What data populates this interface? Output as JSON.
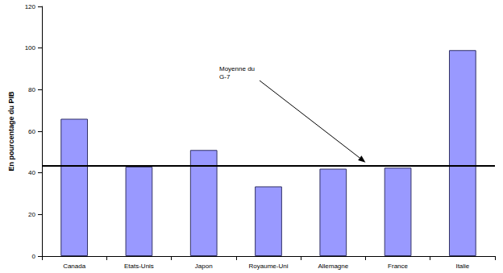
{
  "chart_data": {
    "type": "bar",
    "y_label": "En pourcentage du PIB",
    "categories": [
      "Canada",
      "Etats-Unis",
      "Japon",
      "Royaume-Uni",
      "Allemagne",
      "France",
      "Italie"
    ],
    "values": [
      66,
      43,
      51,
      33.5,
      42,
      42.5,
      99
    ],
    "color": "#9999ff",
    "ylim": [
      0,
      120
    ],
    "yticks": [
      0,
      20,
      40,
      60,
      80,
      100,
      120
    ],
    "grid": false,
    "reference_line": {
      "value": 43.5,
      "label": "Moyenne du G-7"
    }
  }
}
